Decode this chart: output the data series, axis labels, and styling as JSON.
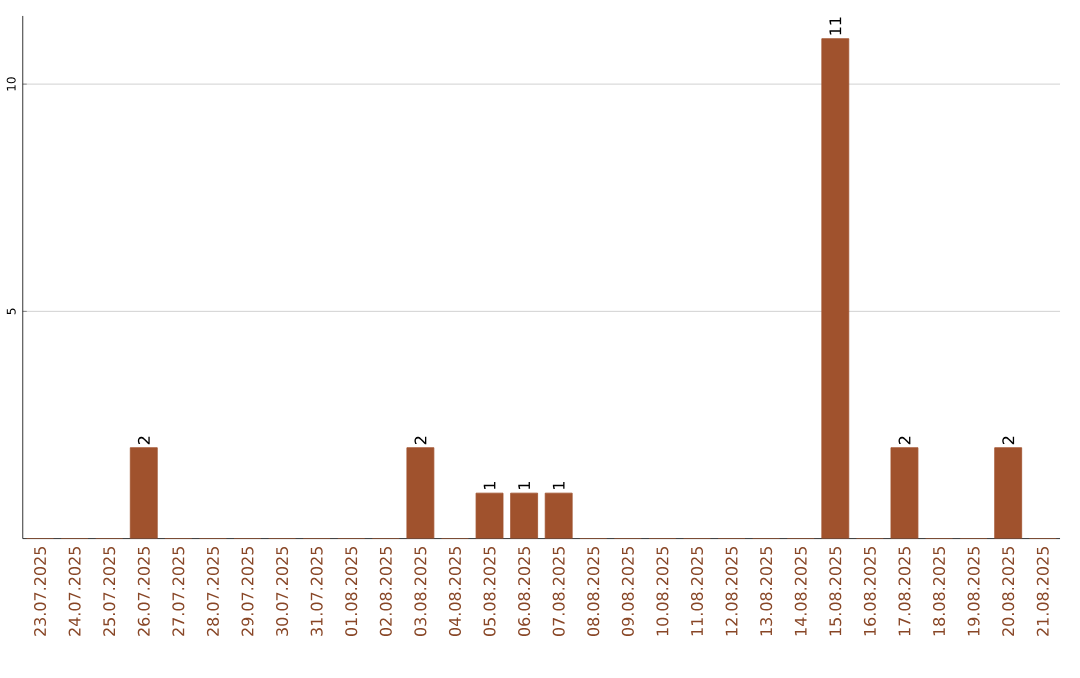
{
  "chart_data": {
    "type": "bar",
    "categories": [
      "23.07.2025",
      "24.07.2025",
      "25.07.2025",
      "26.07.2025",
      "27.07.2025",
      "28.07.2025",
      "29.07.2025",
      "30.07.2025",
      "31.07.2025",
      "01.08.2025",
      "02.08.2025",
      "03.08.2025",
      "04.08.2025",
      "05.08.2025",
      "06.08.2025",
      "07.08.2025",
      "08.08.2025",
      "09.08.2025",
      "10.08.2025",
      "11.08.2025",
      "12.08.2025",
      "13.08.2025",
      "14.08.2025",
      "15.08.2025",
      "16.08.2025",
      "17.08.2025",
      "18.08.2025",
      "19.08.2025",
      "20.08.2025",
      "21.08.2025"
    ],
    "values": [
      0,
      0,
      0,
      2,
      0,
      0,
      0,
      0,
      0,
      0,
      0,
      2,
      0,
      1,
      1,
      1,
      0,
      0,
      0,
      0,
      0,
      0,
      0,
      11,
      0,
      2,
      0,
      0,
      2,
      0
    ],
    "value_labels": [
      null,
      null,
      null,
      "2",
      null,
      null,
      null,
      null,
      null,
      null,
      null,
      "2",
      null,
      "1",
      "1",
      "1",
      null,
      null,
      null,
      null,
      null,
      null,
      null,
      "11",
      null,
      "2",
      null,
      null,
      "2",
      null
    ],
    "color": "#a0522d",
    "ylim": [
      0,
      11.5
    ],
    "yticks": [
      5,
      10
    ],
    "grid": "y"
  }
}
